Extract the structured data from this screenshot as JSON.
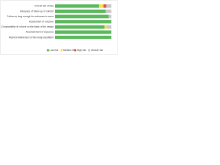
{
  "chart_data": {
    "type": "stacked-barh",
    "categories": [
      "Overall risk of bias",
      "Adequacy of follow up of cohorts",
      "Follow-up long enough for outcomes to occur",
      "Assessment of outcome",
      "Comparability of cohorts on the basis of the design",
      "Ascertainment of exposure",
      "Representativeness of the study population"
    ],
    "series": [
      {
        "name": "Low risk",
        "color": "#5cb85c",
        "values": [
          78,
          90,
          95,
          100,
          88,
          100,
          100
        ]
      },
      {
        "name": "Medium risk",
        "color": "#f0e04a",
        "values": [
          8,
          0,
          0,
          0,
          4,
          0,
          0
        ]
      },
      {
        "name": "High risk",
        "color": "#d9534f",
        "values": [
          5,
          0,
          0,
          0,
          0,
          0,
          0
        ]
      },
      {
        "name": "Unclear risk",
        "color": "#c8c8c8",
        "values": [
          9,
          10,
          5,
          0,
          8,
          0,
          0
        ]
      }
    ],
    "xlim": [
      0,
      100
    ]
  }
}
